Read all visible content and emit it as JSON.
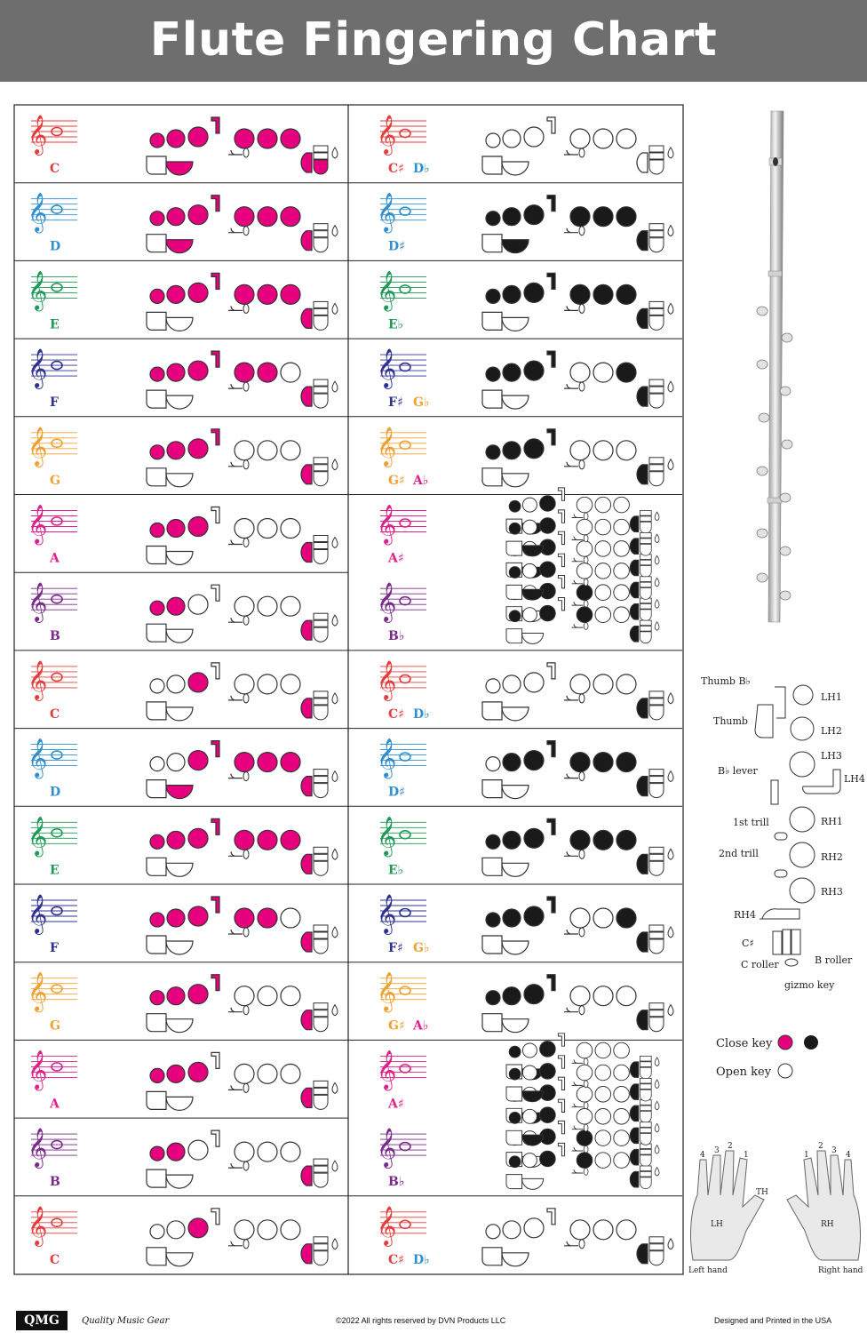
{
  "title": "Flute Fingering Chart",
  "colors": {
    "magenta": "#e6007e",
    "black": "#1a1a1a"
  },
  "note_colors": {
    "C": "#e53b3b",
    "D": "#2f8fd0",
    "E": "#1d9a55",
    "F": "#2e3192",
    "G": "#f0a030",
    "A": "#e0208c",
    "B": "#7a2a8a"
  },
  "left_column": [
    {
      "note": "C",
      "pos": 0,
      "fill": [
        1,
        1,
        1,
        1,
        1,
        1,
        1,
        1,
        1,
        1,
        1,
        0,
        0,
        0
      ]
    },
    {
      "note": "D",
      "pos": 1,
      "fill": [
        1,
        1,
        1,
        1,
        1,
        1,
        1,
        1,
        1,
        0,
        0,
        0,
        0,
        0
      ]
    },
    {
      "note": "E",
      "pos": 2,
      "fill": [
        1,
        1,
        1,
        1,
        1,
        1,
        1,
        0,
        1,
        0,
        0,
        0,
        0,
        0
      ]
    },
    {
      "note": "F",
      "pos": 3,
      "fill": [
        1,
        1,
        1,
        1,
        1,
        1,
        0,
        0,
        1,
        0,
        0,
        0,
        0,
        0
      ]
    },
    {
      "note": "G",
      "pos": 4,
      "fill": [
        1,
        1,
        1,
        1,
        0,
        0,
        0,
        0,
        1,
        0,
        0,
        0,
        0,
        0
      ]
    },
    {
      "note": "A",
      "pos": 5,
      "fill": [
        1,
        1,
        1,
        0,
        0,
        0,
        0,
        0,
        1,
        0,
        0,
        0,
        0,
        0
      ]
    },
    {
      "note": "B",
      "pos": 6,
      "fill": [
        1,
        1,
        0,
        0,
        0,
        0,
        0,
        0,
        1,
        0,
        0,
        0,
        0,
        0
      ]
    },
    {
      "note": "C",
      "pos": 7,
      "fill": [
        0,
        0,
        1,
        0,
        0,
        0,
        0,
        0,
        1,
        0,
        0,
        0,
        0,
        0
      ]
    },
    {
      "note": "D",
      "pos": 8,
      "fill": [
        0,
        0,
        1,
        1,
        1,
        1,
        1,
        1,
        1,
        0,
        0,
        0,
        0,
        0
      ]
    },
    {
      "note": "E",
      "pos": 9,
      "fill": [
        1,
        1,
        1,
        1,
        1,
        1,
        1,
        0,
        1,
        0,
        0,
        0,
        0,
        0
      ]
    },
    {
      "note": "F",
      "pos": 10,
      "fill": [
        1,
        1,
        1,
        1,
        1,
        1,
        0,
        0,
        1,
        0,
        0,
        0,
        0,
        0
      ]
    },
    {
      "note": "G",
      "pos": 11,
      "fill": [
        1,
        1,
        1,
        1,
        0,
        0,
        0,
        0,
        1,
        0,
        0,
        0,
        0,
        0
      ]
    },
    {
      "note": "A",
      "pos": 12,
      "fill": [
        1,
        1,
        1,
        0,
        0,
        0,
        0,
        0,
        1,
        0,
        0,
        0,
        0,
        0
      ]
    },
    {
      "note": "B",
      "pos": 13,
      "fill": [
        1,
        1,
        0,
        0,
        0,
        0,
        0,
        0,
        1,
        0,
        0,
        0,
        0,
        0
      ]
    },
    {
      "note": "C",
      "pos": 14,
      "fill": [
        0,
        0,
        1,
        0,
        0,
        0,
        0,
        0,
        1,
        0,
        0,
        0,
        0,
        0
      ]
    }
  ],
  "right_column": [
    {
      "notes": [
        "C♯",
        "D♭"
      ],
      "note_colors": [
        "#e53b3b",
        "#2f8fd0"
      ],
      "pos": 0,
      "fill": [
        0,
        0,
        0,
        0,
        0,
        0,
        0,
        0,
        0,
        0,
        0,
        0,
        0,
        0
      ]
    },
    {
      "notes": [
        "D♯"
      ],
      "note_colors": [
        "#2f8fd0"
      ],
      "pos": 1,
      "fill": [
        1,
        1,
        1,
        1,
        1,
        1,
        1,
        1,
        1,
        0,
        0,
        0,
        0,
        0
      ]
    },
    {
      "notes": [
        "E♭"
      ],
      "note_colors": [
        "#1d9a55"
      ],
      "pos": 2,
      "fill": [
        1,
        1,
        1,
        1,
        1,
        1,
        1,
        0,
        1,
        0,
        0,
        0,
        0,
        0
      ]
    },
    {
      "notes": [
        "F♯",
        "G♭"
      ],
      "note_colors": [
        "#2e3192",
        "#f0a030"
      ],
      "pos": 3,
      "fill": [
        1,
        1,
        1,
        1,
        0,
        0,
        1,
        0,
        1,
        0,
        0,
        0,
        0,
        0
      ]
    },
    {
      "notes": [
        "G♯",
        "A♭"
      ],
      "note_colors": [
        "#f0a030",
        "#e0208c"
      ],
      "pos": 4,
      "fill": [
        1,
        1,
        1,
        1,
        0,
        0,
        0,
        0,
        1,
        0,
        0,
        0,
        0,
        0
      ]
    },
    {
      "notes": [
        "A♯"
      ],
      "note_colors": [
        "#e0208c"
      ],
      "pos": 5,
      "triple": true
    },
    {
      "notes": [
        "B♭"
      ],
      "note_colors": [
        "#7a2a8a"
      ],
      "pos": 6,
      "triple": true
    },
    {
      "notes": [
        "C♯",
        "D♭"
      ],
      "note_colors": [
        "#e53b3b",
        "#2f8fd0"
      ],
      "pos": 7,
      "fill": [
        0,
        0,
        0,
        0,
        0,
        0,
        0,
        0,
        1,
        0,
        0,
        0,
        0,
        0
      ]
    },
    {
      "notes": [
        "D♯"
      ],
      "note_colors": [
        "#2f8fd0"
      ],
      "pos": 8,
      "fill": [
        0,
        1,
        1,
        1,
        1,
        1,
        1,
        0,
        1,
        0,
        0,
        0,
        0,
        0
      ]
    },
    {
      "notes": [
        "E♭"
      ],
      "note_colors": [
        "#1d9a55"
      ],
      "pos": 9,
      "fill": [
        1,
        1,
        1,
        1,
        1,
        1,
        1,
        0,
        1,
        0,
        0,
        0,
        0,
        0
      ]
    },
    {
      "notes": [
        "F♯",
        "G♭"
      ],
      "note_colors": [
        "#2e3192",
        "#f0a030"
      ],
      "pos": 10,
      "fill": [
        1,
        1,
        1,
        1,
        0,
        0,
        1,
        0,
        1,
        0,
        0,
        0,
        0,
        0
      ]
    },
    {
      "notes": [
        "G♯",
        "A♭"
      ],
      "note_colors": [
        "#f0a030",
        "#e0208c"
      ],
      "pos": 11,
      "fill": [
        1,
        1,
        1,
        1,
        0,
        0,
        0,
        0,
        1,
        0,
        0,
        0,
        0,
        0
      ]
    },
    {
      "notes": [
        "A♯"
      ],
      "note_colors": [
        "#e0208c"
      ],
      "pos": 12,
      "triple": true
    },
    {
      "notes": [
        "B♭"
      ],
      "note_colors": [
        "#7a2a8a"
      ],
      "pos": 13,
      "triple": true
    },
    {
      "notes": [
        "C♯",
        "D♭"
      ],
      "note_colors": [
        "#e53b3b",
        "#2f8fd0"
      ],
      "pos": 14,
      "fill": [
        0,
        0,
        0,
        0,
        0,
        0,
        0,
        0,
        1,
        0,
        0,
        0,
        0,
        0
      ]
    }
  ],
  "key_labels": {
    "thumb_bb": "Thumb B♭",
    "thumb": "Thumb",
    "lh1": "LH1",
    "lh2": "LH2",
    "lh3": "LH3",
    "lh4": "LH4",
    "bb_lever": "B♭ lever",
    "trill1": "1st trill",
    "trill2": "2nd trill",
    "rh1": "RH1",
    "rh2": "RH2",
    "rh3": "RH3",
    "rh4": "RH4",
    "cs": "C♯",
    "b_roller": "B roller",
    "c_roller": "C roller",
    "gizmo": "gizmo key"
  },
  "legend": {
    "close": "Close key",
    "open": "Open key"
  },
  "hands": {
    "left_label": "LH",
    "right_label": "RH",
    "th": "TH",
    "left_caption": "Left hand",
    "right_caption": "Right hand",
    "left_nums": [
      "4",
      "3",
      "2",
      "1"
    ],
    "right_nums": [
      "1",
      "2",
      "3",
      "4"
    ]
  },
  "footer": {
    "logo": "QMG",
    "brand": "Quality Music Gear",
    "copyright": "©2022 All rights reserved by DVN Products LLC",
    "made": "Designed and Printed in the USA"
  }
}
